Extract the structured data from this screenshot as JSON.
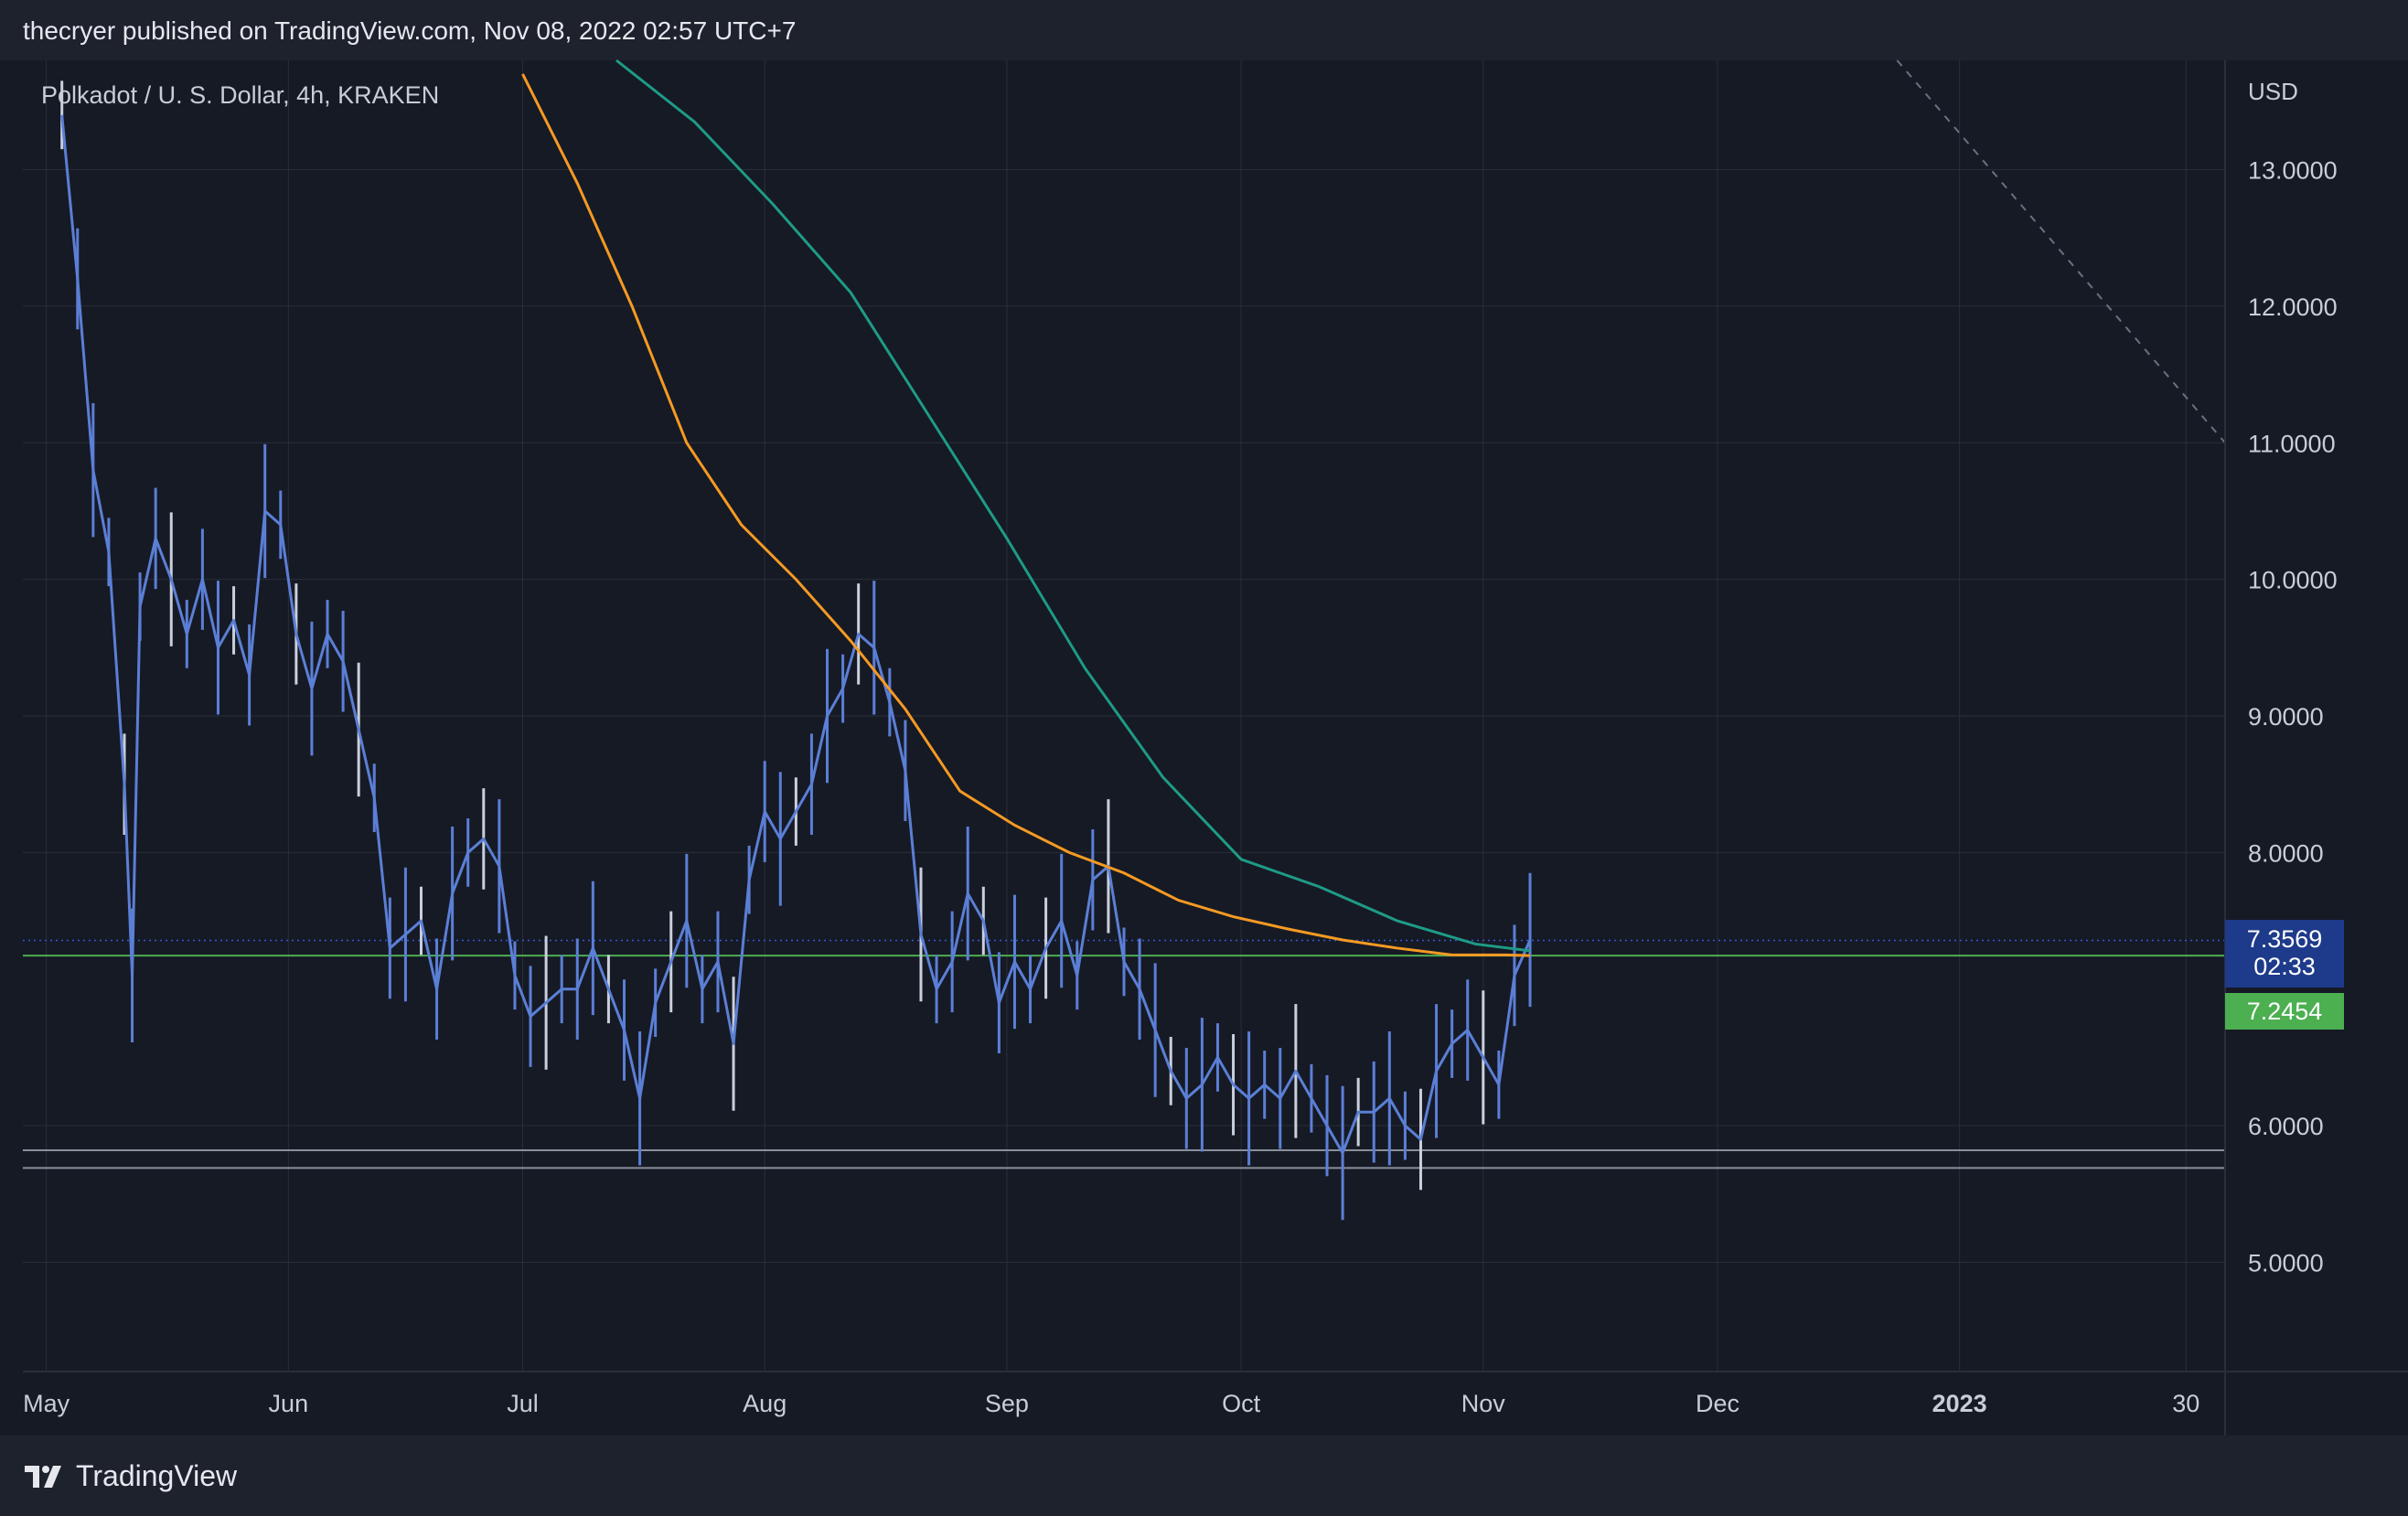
{
  "header": {
    "published_text": "thecryer published on TradingView.com, Nov 08, 2022 02:57 UTC+7"
  },
  "footer": {
    "brand_name": "TradingView",
    "logo_icon": "tradingview-logo-icon"
  },
  "colors": {
    "background": "#161a25",
    "grid": "#2a2e39",
    "candle": "#5b7fd6",
    "candle_light": "#c9cfdc",
    "ma_orange": "#f59a23",
    "ma_teal": "#1e9b86",
    "support_line": "#8a8f9c",
    "last_price_bg": "#1e3a8a",
    "ma_tag_bg": "#4caf50",
    "green_line": "#4caf50"
  },
  "chart_data": {
    "type": "line",
    "symbol_label": "Polkadot / U. S. Dollar, 4h, KRAKEN",
    "currency": "USD",
    "x_ticks": [
      "May",
      "Jun",
      "Jul",
      "Aug",
      "Sep",
      "Oct",
      "Nov",
      "Dec",
      "2023",
      "30"
    ],
    "x_tick_dates": [
      "2022-05-01",
      "2022-06-01",
      "2022-07-01",
      "2022-08-01",
      "2022-09-01",
      "2022-10-01",
      "2022-11-01",
      "2022-12-01",
      "2023-01-01",
      "2023-01-30"
    ],
    "x_range": [
      "2022-04-28",
      "2023-02-04"
    ],
    "y_ticks": [
      "13.0000",
      "12.0000",
      "11.0000",
      "10.0000",
      "9.0000",
      "8.0000",
      "6.0000",
      "5.0000"
    ],
    "y_tick_values": [
      13,
      12,
      11,
      10,
      9,
      8,
      6,
      5
    ],
    "ylim": [
      4.2,
      13.8
    ],
    "last_price": "7.3569",
    "last_price_countdown": "02:33",
    "ma_value_label": "7.2454",
    "horizontal_levels": [
      5.82,
      5.69
    ],
    "series": [
      {
        "kind": "price",
        "dates": [
          "2022-05-03",
          "2022-05-05",
          "2022-05-07",
          "2022-05-09",
          "2022-05-11",
          "2022-05-12",
          "2022-05-13",
          "2022-05-15",
          "2022-05-17",
          "2022-05-19",
          "2022-05-21",
          "2022-05-23",
          "2022-05-25",
          "2022-05-27",
          "2022-05-29",
          "2022-05-31",
          "2022-06-02",
          "2022-06-04",
          "2022-06-06",
          "2022-06-08",
          "2022-06-10",
          "2022-06-12",
          "2022-06-14",
          "2022-06-16",
          "2022-06-18",
          "2022-06-20",
          "2022-06-22",
          "2022-06-24",
          "2022-06-26",
          "2022-06-28",
          "2022-06-30",
          "2022-07-02",
          "2022-07-04",
          "2022-07-06",
          "2022-07-08",
          "2022-07-10",
          "2022-07-12",
          "2022-07-14",
          "2022-07-16",
          "2022-07-18",
          "2022-07-20",
          "2022-07-22",
          "2022-07-24",
          "2022-07-26",
          "2022-07-28",
          "2022-07-30",
          "2022-08-01",
          "2022-08-03",
          "2022-08-05",
          "2022-08-07",
          "2022-08-09",
          "2022-08-11",
          "2022-08-13",
          "2022-08-15",
          "2022-08-17",
          "2022-08-19",
          "2022-08-21",
          "2022-08-23",
          "2022-08-25",
          "2022-08-27",
          "2022-08-29",
          "2022-08-31",
          "2022-09-02",
          "2022-09-04",
          "2022-09-06",
          "2022-09-08",
          "2022-09-10",
          "2022-09-12",
          "2022-09-14",
          "2022-09-16",
          "2022-09-18",
          "2022-09-20",
          "2022-09-22",
          "2022-09-24",
          "2022-09-26",
          "2022-09-28",
          "2022-09-30",
          "2022-10-02",
          "2022-10-04",
          "2022-10-06",
          "2022-10-08",
          "2022-10-10",
          "2022-10-12",
          "2022-10-14",
          "2022-10-16",
          "2022-10-18",
          "2022-10-20",
          "2022-10-22",
          "2022-10-24",
          "2022-10-26",
          "2022-10-28",
          "2022-10-30",
          "2022-11-01",
          "2022-11-03",
          "2022-11-05",
          "2022-11-07"
        ],
        "values": [
          13.4,
          12.2,
          10.8,
          10.2,
          8.5,
          7.1,
          9.8,
          10.3,
          10.0,
          9.6,
          10.0,
          9.5,
          9.7,
          9.3,
          10.5,
          10.4,
          9.6,
          9.2,
          9.6,
          9.4,
          8.9,
          8.4,
          7.3,
          7.4,
          7.5,
          7.0,
          7.7,
          8.0,
          8.1,
          7.9,
          7.1,
          6.8,
          6.9,
          7.0,
          7.0,
          7.3,
          7.0,
          6.7,
          6.2,
          6.9,
          7.2,
          7.5,
          7.0,
          7.2,
          6.6,
          7.8,
          8.3,
          8.1,
          8.3,
          8.5,
          9.0,
          9.2,
          9.6,
          9.5,
          9.1,
          8.6,
          7.4,
          7.0,
          7.2,
          7.7,
          7.5,
          6.9,
          7.2,
          7.0,
          7.3,
          7.5,
          7.1,
          7.8,
          7.9,
          7.2,
          7.0,
          6.7,
          6.4,
          6.2,
          6.3,
          6.5,
          6.3,
          6.2,
          6.3,
          6.2,
          6.4,
          6.2,
          6.0,
          5.8,
          6.1,
          6.1,
          6.2,
          6.0,
          5.9,
          6.4,
          6.6,
          6.7,
          6.5,
          6.3,
          7.1,
          7.36
        ]
      },
      {
        "kind": "moving-average",
        "color": "orange",
        "dates": [
          "2022-07-01",
          "2022-07-08",
          "2022-07-15",
          "2022-07-22",
          "2022-07-29",
          "2022-08-05",
          "2022-08-12",
          "2022-08-19",
          "2022-08-26",
          "2022-09-02",
          "2022-09-09",
          "2022-09-16",
          "2022-09-23",
          "2022-09-30",
          "2022-10-07",
          "2022-10-14",
          "2022-10-21",
          "2022-10-28",
          "2022-11-04",
          "2022-11-07"
        ],
        "values": [
          13.7,
          12.9,
          12.0,
          11.0,
          10.4,
          10.0,
          9.55,
          9.05,
          8.45,
          8.2,
          8.0,
          7.85,
          7.65,
          7.53,
          7.44,
          7.36,
          7.3,
          7.25,
          7.25,
          7.245
        ]
      },
      {
        "kind": "moving-average",
        "color": "teal",
        "dates": [
          "2022-07-13",
          "2022-07-23",
          "2022-08-02",
          "2022-08-12",
          "2022-08-22",
          "2022-09-01",
          "2022-09-11",
          "2022-09-21",
          "2022-10-01",
          "2022-10-11",
          "2022-10-21",
          "2022-10-31",
          "2022-11-07"
        ],
        "values": [
          13.8,
          13.35,
          12.75,
          12.1,
          11.2,
          10.3,
          9.35,
          8.55,
          7.95,
          7.75,
          7.5,
          7.33,
          7.28
        ]
      },
      {
        "kind": "trendline",
        "style": "dashed",
        "dates": [
          "2022-12-24",
          "2023-02-04"
        ],
        "values": [
          13.8,
          11.0
        ]
      }
    ]
  }
}
